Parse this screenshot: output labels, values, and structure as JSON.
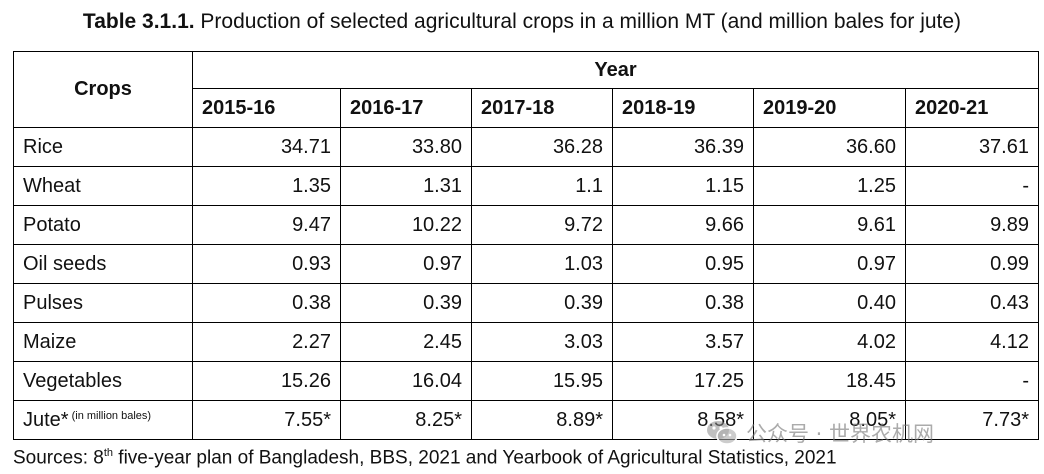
{
  "title": {
    "number": "Table 3.1.1.",
    "text": " Production of selected agricultural crops in a million MT (and million bales for jute)"
  },
  "table": {
    "crops_header": "Crops",
    "year_header": "Year",
    "years": [
      "2015-16",
      "2016-17",
      "2017-18",
      "2018-19",
      "2019-20",
      "2020-21"
    ],
    "rows": [
      {
        "crop": "Rice",
        "values": [
          "34.71",
          "33.80",
          "36.28",
          "36.39",
          "36.60",
          "37.61"
        ]
      },
      {
        "crop": "Wheat",
        "values": [
          "1.35",
          "1.31",
          "1.1",
          "1.15",
          "1.25",
          "-"
        ]
      },
      {
        "crop": "Potato",
        "values": [
          "9.47",
          "10.22",
          "9.72",
          "9.66",
          "9.61",
          "9.89"
        ]
      },
      {
        "crop": "Oil seeds",
        "values": [
          "0.93",
          "0.97",
          "1.03",
          "0.95",
          "0.97",
          "0.99"
        ]
      },
      {
        "crop": "Pulses",
        "values": [
          "0.38",
          "0.39",
          "0.39",
          "0.38",
          "0.40",
          "0.43"
        ]
      },
      {
        "crop": "Maize",
        "values": [
          "2.27",
          "2.45",
          "3.03",
          "3.57",
          "4.02",
          "4.12"
        ]
      },
      {
        "crop": "Vegetables",
        "values": [
          "15.26",
          "16.04",
          "15.95",
          "17.25",
          "18.45",
          "-"
        ]
      },
      {
        "crop": "Jute*",
        "note": "(in million bales)",
        "values": [
          "7.55*",
          "8.25*",
          "8.89*",
          "8.58*",
          "8.05*",
          "7.73*"
        ]
      }
    ]
  },
  "sources": {
    "prefix": "Sources: 8",
    "sup": "th",
    "rest": " five-year plan of Bangladesh, BBS, 2021 and Yearbook of Agricultural Statistics, 2021"
  },
  "watermark": {
    "icon": "wechat-icon",
    "text": "公众号 · 世界农机网"
  }
}
